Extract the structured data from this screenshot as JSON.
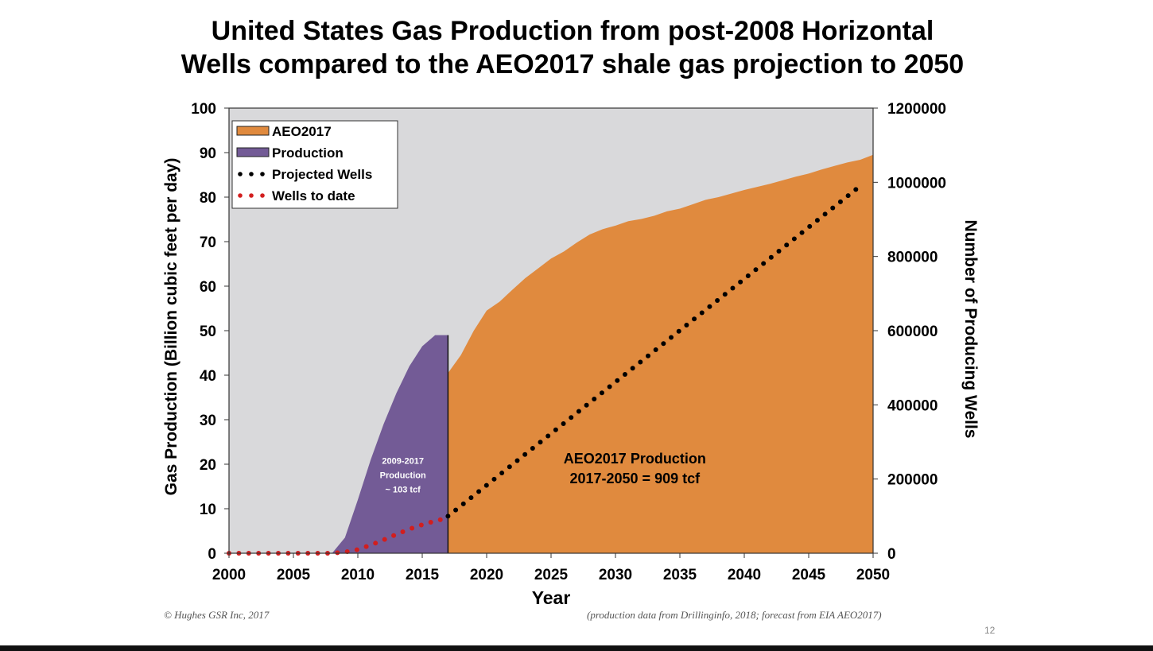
{
  "title_line1": "United States Gas Production from post-2008 Horizontal",
  "title_line2": "Wells compared to the AEO2017 shale gas projection to 2050",
  "footer_left": "© Hughes GSR Inc, 2017",
  "footer_right": "(production data from Drillinginfo, 2018; forecast from EIA AEO2017)",
  "slide_number": "12",
  "colors": {
    "aeo_fill": "#E08A3E",
    "production_fill": "#735B96",
    "plot_bg": "#D9D9DB",
    "projected_wells": "#000000",
    "wells_to_date": "#D21E1E"
  },
  "chart_data": {
    "type": "area",
    "xlabel": "Year",
    "ylabel": "Gas Production (Billion cubic feet per day)",
    "y2label": "Number of Producing Wells",
    "xlim": [
      2000,
      2050
    ],
    "ylim": [
      0,
      100
    ],
    "y2lim": [
      0,
      1200000
    ],
    "x_ticks": [
      2000,
      2005,
      2010,
      2015,
      2020,
      2025,
      2030,
      2035,
      2040,
      2045,
      2050
    ],
    "y_ticks": [
      0,
      10,
      20,
      30,
      40,
      50,
      60,
      70,
      80,
      90,
      100
    ],
    "y2_ticks": [
      0,
      200000,
      400000,
      600000,
      800000,
      1000000,
      1200000
    ],
    "legend_position": "top-left",
    "series": [
      {
        "name": "AEO2017",
        "kind": "area",
        "axis": "left",
        "x": [
          2017,
          2018,
          2019,
          2020,
          2021,
          2022,
          2023,
          2024,
          2025,
          2026,
          2027,
          2028,
          2029,
          2030,
          2031,
          2032,
          2033,
          2034,
          2035,
          2036,
          2037,
          2038,
          2039,
          2040,
          2041,
          2042,
          2043,
          2044,
          2045,
          2046,
          2047,
          2048,
          2049,
          2050
        ],
        "y": [
          40.5,
          44.5,
          50,
          54.5,
          56.5,
          59.2,
          61.8,
          64,
          66.2,
          67.8,
          69.8,
          71.6,
          72.8,
          73.6,
          74.6,
          75.1,
          75.8,
          76.8,
          77.4,
          78.4,
          79.4,
          80.0,
          80.8,
          81.6,
          82.3,
          83.0,
          83.8,
          84.6,
          85.3,
          86.2,
          87.0,
          87.8,
          88.4,
          89.5
        ]
      },
      {
        "name": "Production",
        "kind": "area",
        "axis": "left",
        "x": [
          2008,
          2009,
          2010,
          2011,
          2012,
          2013,
          2014,
          2015,
          2016,
          2017
        ],
        "y": [
          0,
          3.5,
          12,
          21,
          29,
          36,
          42,
          46.5,
          49,
          49
        ]
      },
      {
        "name": "Projected Wells",
        "kind": "dotted-line",
        "axis": "right",
        "x": [
          2017,
          2049
        ],
        "y": [
          100000,
          990000
        ]
      },
      {
        "name": "Wells to date",
        "kind": "dotted-line",
        "axis": "right",
        "x": [
          2000,
          2008,
          2009,
          2010,
          2011,
          2012,
          2013,
          2014,
          2015,
          2016,
          2017
        ],
        "y": [
          0,
          0,
          3000,
          10000,
          22000,
          36000,
          51000,
          65000,
          77000,
          87000,
          95000
        ]
      }
    ],
    "annotations": [
      {
        "lines": [
          "2009-2017",
          "Production",
          "~ 103 tcf"
        ],
        "x": 2013.5,
        "y": 17.5,
        "color": "#FFFFFF",
        "size": "small"
      },
      {
        "lines": [
          "AEO2017 Production",
          "2017-2050 = 909 tcf"
        ],
        "x": 2031.5,
        "y": 19,
        "color": "#000000",
        "size": "large"
      }
    ]
  }
}
